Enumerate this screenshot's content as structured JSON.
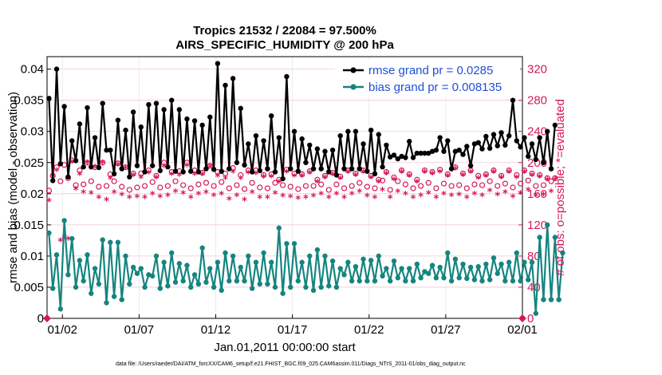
{
  "chart_data": {
    "type": "line",
    "title": "Tropics 21532 / 22084 = 97.500%",
    "subtitle": "AIRS_SPECIFIC_HUMIDITY @ 200 hPa",
    "xlabel": "Jan.01,2011 00:00:00 start",
    "ylabel_left": "rmse and bias (model - observation)",
    "ylabel_right": "# of obs: o=possible; *=evaluated",
    "footer": "data file: /Users/raeder/DAI/ATM_forcXX/CAM6_setup/f.e21.FHIST_BGC.f09_025.CAM6assim.011/Diags_NTrS_2011-01/obs_diag_output.nc",
    "xlim": [
      0,
      31
    ],
    "ylim_left": [
      0,
      0.042
    ],
    "ylim_right": [
      0,
      336
    ],
    "x_ticks": [
      {
        "x": 1,
        "label": "01/02"
      },
      {
        "x": 6,
        "label": "01/07"
      },
      {
        "x": 11,
        "label": "01/12"
      },
      {
        "x": 16,
        "label": "01/17"
      },
      {
        "x": 21,
        "label": "01/22"
      },
      {
        "x": 26,
        "label": "01/27"
      },
      {
        "x": 31,
        "label": "02/01"
      }
    ],
    "y_ticks_left": [
      {
        "v": 0,
        "label": "0"
      },
      {
        "v": 0.005,
        "label": "0.005"
      },
      {
        "v": 0.01,
        "label": "0.01"
      },
      {
        "v": 0.015,
        "label": "0.015"
      },
      {
        "v": 0.02,
        "label": "0.02"
      },
      {
        "v": 0.025,
        "label": "0.025"
      },
      {
        "v": 0.03,
        "label": "0.03"
      },
      {
        "v": 0.035,
        "label": "0.035"
      },
      {
        "v": 0.04,
        "label": "0.04"
      }
    ],
    "y_ticks_right": [
      {
        "v": 0,
        "label": "0"
      },
      {
        "v": 40,
        "label": "40"
      },
      {
        "v": 80,
        "label": "80"
      },
      {
        "v": 120,
        "label": "120"
      },
      {
        "v": 160,
        "label": "160"
      },
      {
        "v": 200,
        "label": "200"
      },
      {
        "v": 240,
        "label": "240"
      },
      {
        "v": 280,
        "label": "280"
      },
      {
        "v": 320,
        "label": "320"
      }
    ],
    "time_step_days": 0.25,
    "series": [
      {
        "name": "rmse grand pr = 0.0285",
        "axis": "left",
        "color": "#000000",
        "values": [
          0.0353,
          0.0221,
          0.04,
          0.0248,
          0.034,
          0.0227,
          0.0285,
          0.0253,
          0.0312,
          0.0243,
          0.0338,
          0.0243,
          0.029,
          0.0242,
          0.0345,
          0.027,
          0.027,
          0.0232,
          0.0318,
          0.024,
          0.0302,
          0.0227,
          0.0331,
          0.0245,
          0.0307,
          0.0235,
          0.0343,
          0.0245,
          0.0345,
          0.0237,
          0.0335,
          0.0243,
          0.035,
          0.0236,
          0.0335,
          0.0235,
          0.032,
          0.0236,
          0.0317,
          0.0235,
          0.031,
          0.024,
          0.0323,
          0.0239,
          0.0409,
          0.0236,
          0.0374,
          0.024,
          0.0385,
          0.025,
          0.0337,
          0.0246,
          0.028,
          0.0235,
          0.0293,
          0.0237,
          0.0285,
          0.024,
          0.0325,
          0.0235,
          0.029,
          0.0224,
          0.0388,
          0.024,
          0.03,
          0.0236,
          0.0288,
          0.025,
          0.0278,
          0.024,
          0.0272,
          0.024,
          0.0268,
          0.0235,
          0.027,
          0.023,
          0.0293,
          0.024,
          0.03,
          0.024,
          0.03,
          0.024,
          0.028,
          0.0236,
          0.0302,
          0.0232,
          0.0295,
          0.0243,
          0.0278,
          0.0259,
          0.0262,
          0.0256,
          0.026,
          0.0258,
          0.0284,
          0.0258,
          0.0265,
          0.0265,
          0.0265,
          0.0265,
          0.0268,
          0.027,
          0.029,
          0.0268,
          0.0285,
          0.024,
          0.0268,
          0.027,
          0.0263,
          0.0276,
          0.0245,
          0.028,
          0.0282,
          0.0272,
          0.0292,
          0.0273,
          0.0295,
          0.0277,
          0.0298,
          0.0278,
          0.0293,
          0.035,
          0.0285,
          0.0275,
          0.029,
          0.026,
          0.028,
          0.0255,
          0.029,
          0.025,
          0.03,
          0.024,
          0.031
        ]
      },
      {
        "name": "bias grand pr = 0.008135",
        "axis": "left",
        "color": "#14857f",
        "values": [
          0.0137,
          0.0048,
          0.0102,
          0.0015,
          0.0157,
          0.007,
          0.0128,
          0.005,
          0.0093,
          0.006,
          0.0102,
          0.004,
          0.008,
          0.0055,
          0.0126,
          0.0025,
          0.0122,
          0.0035,
          0.0122,
          0.003,
          0.01,
          0.0055,
          0.0082,
          0.0072,
          0.008,
          0.005,
          0.007,
          0.0068,
          0.01,
          0.0048,
          0.009,
          0.0052,
          0.0105,
          0.0058,
          0.0088,
          0.006,
          0.0085,
          0.005,
          0.007,
          0.0055,
          0.0113,
          0.0058,
          0.008,
          0.005,
          0.009,
          0.0045,
          0.0105,
          0.006,
          0.01,
          0.006,
          0.0082,
          0.006,
          0.01,
          0.0048,
          0.009,
          0.0055,
          0.0105,
          0.0055,
          0.009,
          0.005,
          0.0145,
          0.004,
          0.012,
          0.005,
          0.012,
          0.006,
          0.009,
          0.005,
          0.01,
          0.0045,
          0.011,
          0.005,
          0.01,
          0.0052,
          0.0092,
          0.005,
          0.008,
          0.007,
          0.009,
          0.006,
          0.0083,
          0.006,
          0.0095,
          0.006,
          0.0093,
          0.006,
          0.01,
          0.0068,
          0.008,
          0.006,
          0.0092,
          0.0065,
          0.008,
          0.006,
          0.008,
          0.006,
          0.0087,
          0.0065,
          0.0075,
          0.0072,
          0.0085,
          0.0065,
          0.0082,
          0.0065,
          0.0105,
          0.006,
          0.0095,
          0.0065,
          0.0087,
          0.0064,
          0.0082,
          0.0062,
          0.0083,
          0.006,
          0.0087,
          0.0062,
          0.0097,
          0.0072,
          0.0087,
          0.006,
          0.009,
          0.006,
          0.0105,
          0.006,
          0.009,
          0.0062,
          0.009,
          0.0008,
          0.013,
          0.003,
          0.015,
          0.003,
          0.013,
          0.003,
          0.0105
        ]
      },
      {
        "name": "observations possible (o)",
        "axis": "right",
        "color": "#d6175a",
        "values": [
          164,
          183,
          194,
          176,
          197,
          180,
          203,
          171,
          190,
          172,
          200,
          176,
          194,
          169,
          200,
          170,
          185,
          176,
          199,
          169,
          194,
          165,
          186,
          168,
          186,
          170,
          190,
          175,
          183,
          168,
          200,
          170,
          188,
          176,
          189,
          171,
          200,
          167,
          190,
          172,
          187,
          174,
          196,
          170,
          188,
          175,
          186,
          167,
          193,
          171,
          184,
          166,
          190,
          174,
          190,
          168,
          184,
          167,
          185,
          174,
          178,
          171,
          191,
          169,
          186,
          166,
          185,
          170,
          189,
          170,
          178,
          172,
          183,
          165,
          187,
          172,
          182,
          167,
          190,
          170,
          186,
          174,
          190,
          169,
          183,
          167,
          178,
          177,
          188,
          165,
          181,
          176,
          190,
          172,
          185,
          167,
          178,
          170,
          190,
          174,
          188,
          167,
          191,
          173,
          185,
          170,
          194,
          171,
          186,
          167,
          190,
          172,
          183,
          171,
          185,
          176,
          190,
          170,
          183,
          173,
          190,
          168,
          184,
          173,
          190,
          177,
          186,
          170,
          184,
          171,
          180,
          176,
          180
        ]
      },
      {
        "name": "observations evaluated (*)",
        "axis": "right",
        "color": "#d6175a",
        "values": [
          151,
          183,
          190,
          100,
          104,
          102,
          201,
          166,
          185,
          162,
          200,
          161,
          194,
          155,
          200,
          152,
          180,
          162,
          197,
          159,
          193,
          155,
          184,
          156,
          181,
          155,
          187,
          160,
          181,
          156,
          195,
          158,
          185,
          163,
          184,
          161,
          196,
          155,
          185,
          160,
          185,
          162,
          195,
          158,
          183,
          160,
          180,
          153,
          188,
          158,
          180,
          152,
          187,
          162,
          186,
          155,
          182,
          155,
          182,
          161,
          175,
          157,
          188,
          156,
          183,
          154,
          183,
          155,
          187,
          157,
          175,
          160,
          181,
          155,
          185,
          160,
          180,
          155,
          188,
          160,
          184,
          163,
          188,
          157,
          181,
          155,
          175,
          165,
          186,
          155,
          178,
          163,
          188,
          160,
          183,
          155,
          175,
          158,
          188,
          161,
          186,
          155,
          188,
          160,
          183,
          158,
          192,
          159,
          184,
          155,
          188,
          160,
          180,
          158,
          183,
          164,
          188,
          159,
          181,
          162,
          188,
          156,
          181,
          161,
          188,
          165,
          184,
          158,
          182,
          159,
          178,
          163,
          178
        ]
      }
    ],
    "legend": [
      {
        "label": "rmse grand pr = 0.0285",
        "color": "#000000"
      },
      {
        "label": "bias grand pr = 0.008135",
        "color": "#14857f"
      }
    ],
    "legend_location": "top-right",
    "grid": true
  }
}
